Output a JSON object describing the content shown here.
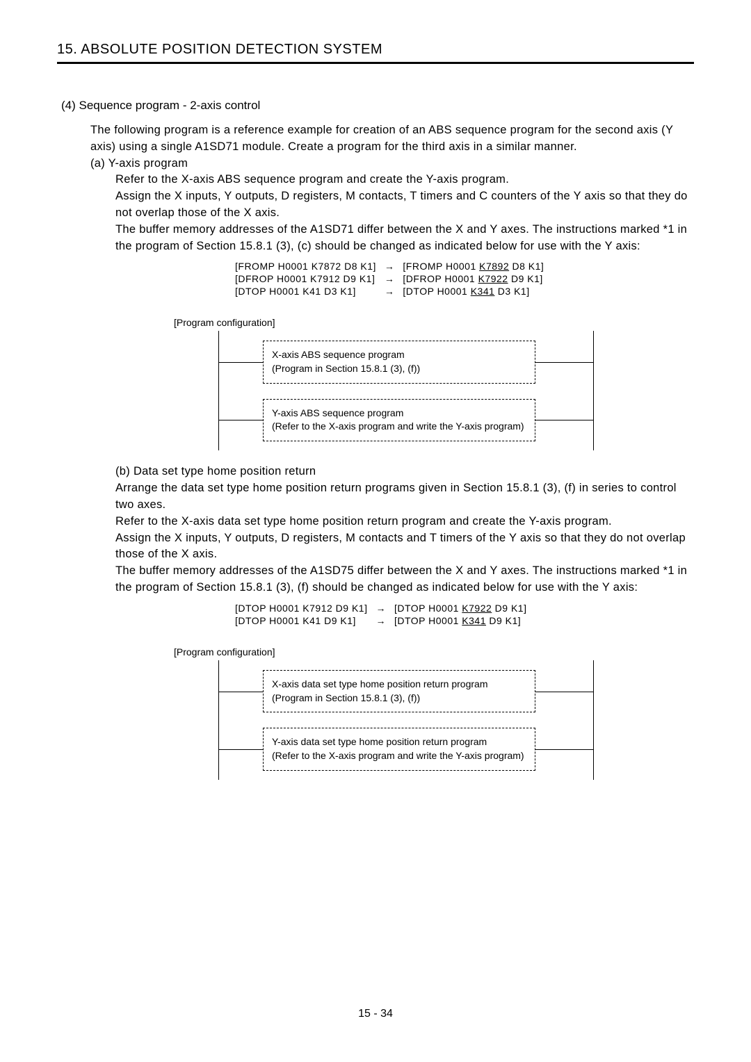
{
  "header": {
    "title": "15. ABSOLUTE POSITION DETECTION SYSTEM"
  },
  "section4": {
    "title": "(4) Sequence program - 2-axis control",
    "intro": "The following program is a reference example for creation of an ABS sequence program for the second axis (Y axis) using a single A1SD71 module. Create a program for the third axis in a similar manner.",
    "subA": {
      "heading": "(a) Y-axis program",
      "p1": "Refer to the X-axis ABS sequence program and create the Y-axis program.",
      "p2": "Assign the X inputs, Y outputs, D registers, M contacts, T timers and C counters of the Y axis so that they do not overlap those of the X axis.",
      "p3": "The buffer memory addresses of the A1SD71 differ between the X and Y axes. The instructions marked *1 in the program of Section 15.8.1 (3), (c) should be changed as indicated below for use with the Y axis:",
      "instructions": [
        {
          "left": "[FROMP  H0001  K7872  D8  K1]",
          "rightPre": "[FROMP  H0001  ",
          "rightU": "K7892",
          "rightPost": "  D8  K1]"
        },
        {
          "left": "[DFROP  H0001  K7912  D9  K1]",
          "rightPre": "[DFROP  H0001  ",
          "rightU": "K7922",
          "rightPost": "  D9  K1]"
        },
        {
          "left": "[DTOP  H0001  K41    D3  K1]",
          "rightPre": "[DTOP  H0001  ",
          "rightU": "K341",
          "rightPost": "   D3  K1]"
        }
      ],
      "configLabel": "[Program configuration]",
      "box1": {
        "line1": "X-axis ABS sequence program",
        "line2": "(Program in Section 15.8.1 (3), (f))"
      },
      "box2": {
        "line1": "Y-axis ABS sequence program",
        "line2": "(Refer to the X-axis program and write the Y-axis program)"
      }
    },
    "subB": {
      "heading": "(b) Data set type home position return",
      "p1": "Arrange the data set type home position return programs given in Section 15.8.1 (3), (f) in series to control two axes.",
      "p2": "Refer to the X-axis data set type home position return program and create the Y-axis program.",
      "p3": "Assign the X inputs, Y outputs, D registers, M contacts and T timers of the Y axis so that they do not overlap those of the X axis.",
      "p4": "The buffer memory addresses of the A1SD75 differ between the X and Y axes. The instructions marked *1 in the program of Section 15.8.1 (3), (f) should be changed as indicated below for use with the Y axis:",
      "instructions": [
        {
          "left": "[DTOP  H0001  K7912  D9  K1]",
          "rightPre": "[DTOP  H0001  ",
          "rightU": "K7922",
          "rightPost": "  D9  K1]"
        },
        {
          "left": "[DTOP  H0001  K41    D9  K1]",
          "rightPre": "[DTOP  H0001  ",
          "rightU": "K341",
          "rightPost": "   D9  K1]"
        }
      ],
      "configLabel": "[Program configuration]",
      "box1": {
        "line1": "X-axis data set type home position return program",
        "line2": "(Program in Section 15.8.1 (3), (f))"
      },
      "box2": {
        "line1": "Y-axis data set type home position return program",
        "line2": "(Refer to the X-axis program and write the Y-axis program)"
      }
    }
  },
  "arrow": "→",
  "pageNumber": "15 -  34",
  "diagramHeight1": 178,
  "diagramHeight2": 190
}
